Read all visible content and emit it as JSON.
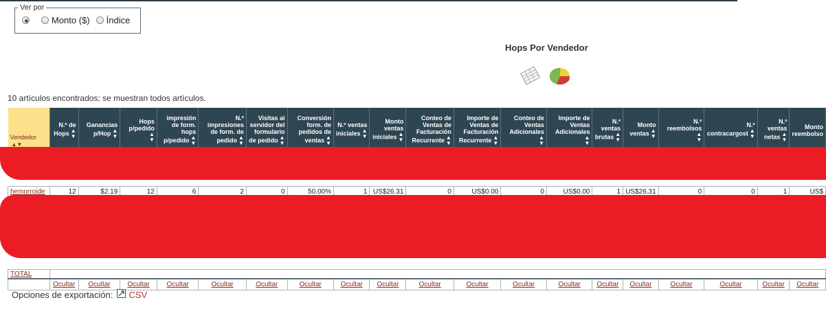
{
  "view_by": {
    "legend": "Ver por",
    "options": [
      {
        "label": "",
        "checked": true
      },
      {
        "label": "Monto ($)",
        "checked": false
      },
      {
        "label": "Índice",
        "checked": false
      }
    ]
  },
  "report": {
    "title": "Hops Por Vendedor",
    "icons": [
      "table-icon",
      "pie-chart-icon"
    ]
  },
  "count_text": "10 artículos encontrados; se muestran todos artículos.",
  "table": {
    "headers": [
      "Vendedor",
      "N.º de Hops",
      "Ganancias p/Hop",
      "Hops p/pedido",
      "impresión de form. hops p/pedido",
      "N.º impresiones de form. de pedido",
      "Visitas al servidor del formulario de pedido",
      "Conversión form. de pedidos de ventas",
      "N.º ventas iniciales",
      "Monto ventas iniciales",
      "Conteo de Ventas de Facturación Recurrente",
      "Importe de Ventas de Facturación Recurrente",
      "Conteo de Ventas Adicionales",
      "Importe de Ventas Adicionales",
      "N.º ventas brutas",
      "Monto ventas",
      "N.º reembolsos",
      "N.º contracargost",
      "N.º ventas netas",
      "Monto reembolso"
    ],
    "visible_row": {
      "vendor": "hemorroide",
      "cells": [
        "12",
        "$2.19",
        "12",
        "6",
        "2",
        "0",
        "50.00%",
        "1",
        "US$26.31",
        "0",
        "US$0.00",
        "0",
        "US$0.00",
        "1",
        "US$26.31",
        "0",
        "0",
        "1",
        "US$"
      ]
    },
    "total_label": "TOTAL",
    "hide_label": "Ocultar"
  },
  "export": {
    "label": "Opciones de exportación:",
    "csv_label": "CSV"
  },
  "colors": {
    "header_bg": "#2e4552",
    "vendor_header_bg": "#fde08a",
    "link": "#8b2a1c",
    "redaction": "#ec1c24"
  }
}
